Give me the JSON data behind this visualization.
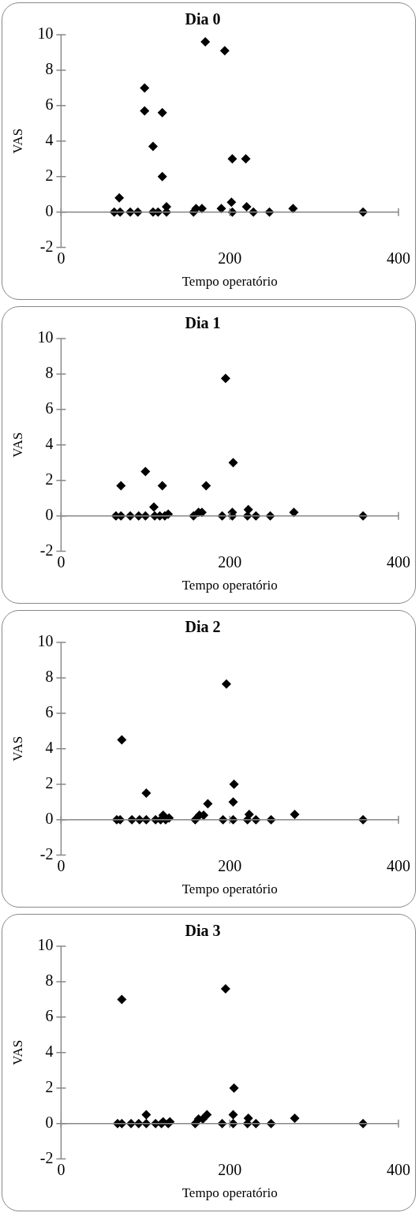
{
  "chart_data": [
    {
      "type": "scatter",
      "title": "Dia 0",
      "xlabel": "Tempo operatório",
      "ylabel": "VAS",
      "color": "#000000",
      "marker": "diamond",
      "xlim": [
        0,
        400
      ],
      "xticks": [
        0,
        200,
        400
      ],
      "ylim": [
        -2,
        10
      ],
      "yticks": [
        -2,
        0,
        2,
        4,
        6,
        8,
        10
      ],
      "x": [
        69,
        63,
        70,
        82,
        91,
        99,
        99,
        109,
        109,
        115,
        120,
        120,
        125,
        125,
        157,
        160,
        167,
        171,
        190,
        194,
        202,
        203,
        203,
        219,
        220,
        228,
        247,
        275,
        358
      ],
      "values": [
        0.8,
        0,
        0,
        0,
        0,
        7.0,
        5.7,
        0,
        3.7,
        0,
        5.6,
        2.0,
        0.3,
        0,
        0,
        0.2,
        0.2,
        9.6,
        0.2,
        9.1,
        0.55,
        0,
        3.0,
        3.0,
        0.3,
        0,
        0,
        0.2,
        0
      ]
    },
    {
      "type": "scatter",
      "title": "Dia 1",
      "xlabel": "Tempo operatório",
      "ylabel": "VAS",
      "color": "#000000",
      "marker": "diamond",
      "xlim": [
        0,
        400
      ],
      "xticks": [
        0,
        200,
        400
      ],
      "ylim": [
        -2,
        10
      ],
      "yticks": [
        -2,
        0,
        2,
        4,
        6,
        8,
        10
      ],
      "x": [
        65,
        71,
        71,
        82,
        92,
        100,
        100,
        110,
        111,
        117,
        120,
        123,
        127,
        157,
        163,
        167,
        172,
        191,
        195,
        203,
        203,
        204,
        221,
        222,
        231,
        248,
        276,
        358
      ],
      "values": [
        0,
        1.7,
        0,
        0,
        0,
        2.5,
        0,
        0.5,
        0,
        0,
        1.7,
        0,
        0.1,
        0,
        0.2,
        0.2,
        1.7,
        0,
        7.75,
        0.2,
        0,
        3.0,
        0,
        0.35,
        0,
        0,
        0.2,
        0
      ]
    },
    {
      "type": "scatter",
      "title": "Dia 2",
      "xlabel": "Tempo operatório",
      "ylabel": "VAS",
      "color": "#000000",
      "marker": "diamond",
      "xlim": [
        0,
        400
      ],
      "xticks": [
        0,
        200,
        400
      ],
      "ylim": [
        -2,
        10
      ],
      "yticks": [
        -2,
        0,
        2,
        4,
        6,
        8,
        10
      ],
      "x": [
        66,
        70,
        72,
        84,
        93,
        101,
        101,
        112,
        118,
        121,
        124,
        128,
        159,
        164,
        169,
        174,
        192,
        196,
        204,
        204,
        205,
        221,
        223,
        231,
        249,
        277,
        358
      ],
      "values": [
        0,
        0,
        4.5,
        0,
        0,
        1.5,
        0,
        0,
        0,
        0.25,
        0,
        0.1,
        0,
        0.25,
        0.25,
        0.9,
        0,
        7.65,
        0,
        1.0,
        2.0,
        0,
        0.3,
        0,
        0,
        0.3,
        0
      ]
    },
    {
      "type": "scatter",
      "title": "Dia 3",
      "xlabel": "Tempo operatório",
      "ylabel": "VAS",
      "color": "#000000",
      "marker": "diamond",
      "xlim": [
        0,
        400
      ],
      "xticks": [
        0,
        200,
        400
      ],
      "ylim": [
        -2,
        10
      ],
      "yticks": [
        -2,
        0,
        2,
        4,
        6,
        8,
        10
      ],
      "x": [
        67,
        72,
        72,
        83,
        92,
        101,
        101,
        112,
        119,
        121,
        127,
        129,
        159,
        163,
        168,
        173,
        191,
        195,
        204,
        204,
        205,
        221,
        222,
        231,
        249,
        277,
        358
      ],
      "values": [
        0,
        0,
        7.0,
        0,
        0,
        0.5,
        0,
        0,
        0,
        0.1,
        0,
        0.1,
        0,
        0.25,
        0.25,
        0.5,
        0,
        7.6,
        0.5,
        0,
        2.0,
        0,
        0.3,
        0,
        0,
        0.3,
        0
      ]
    }
  ]
}
